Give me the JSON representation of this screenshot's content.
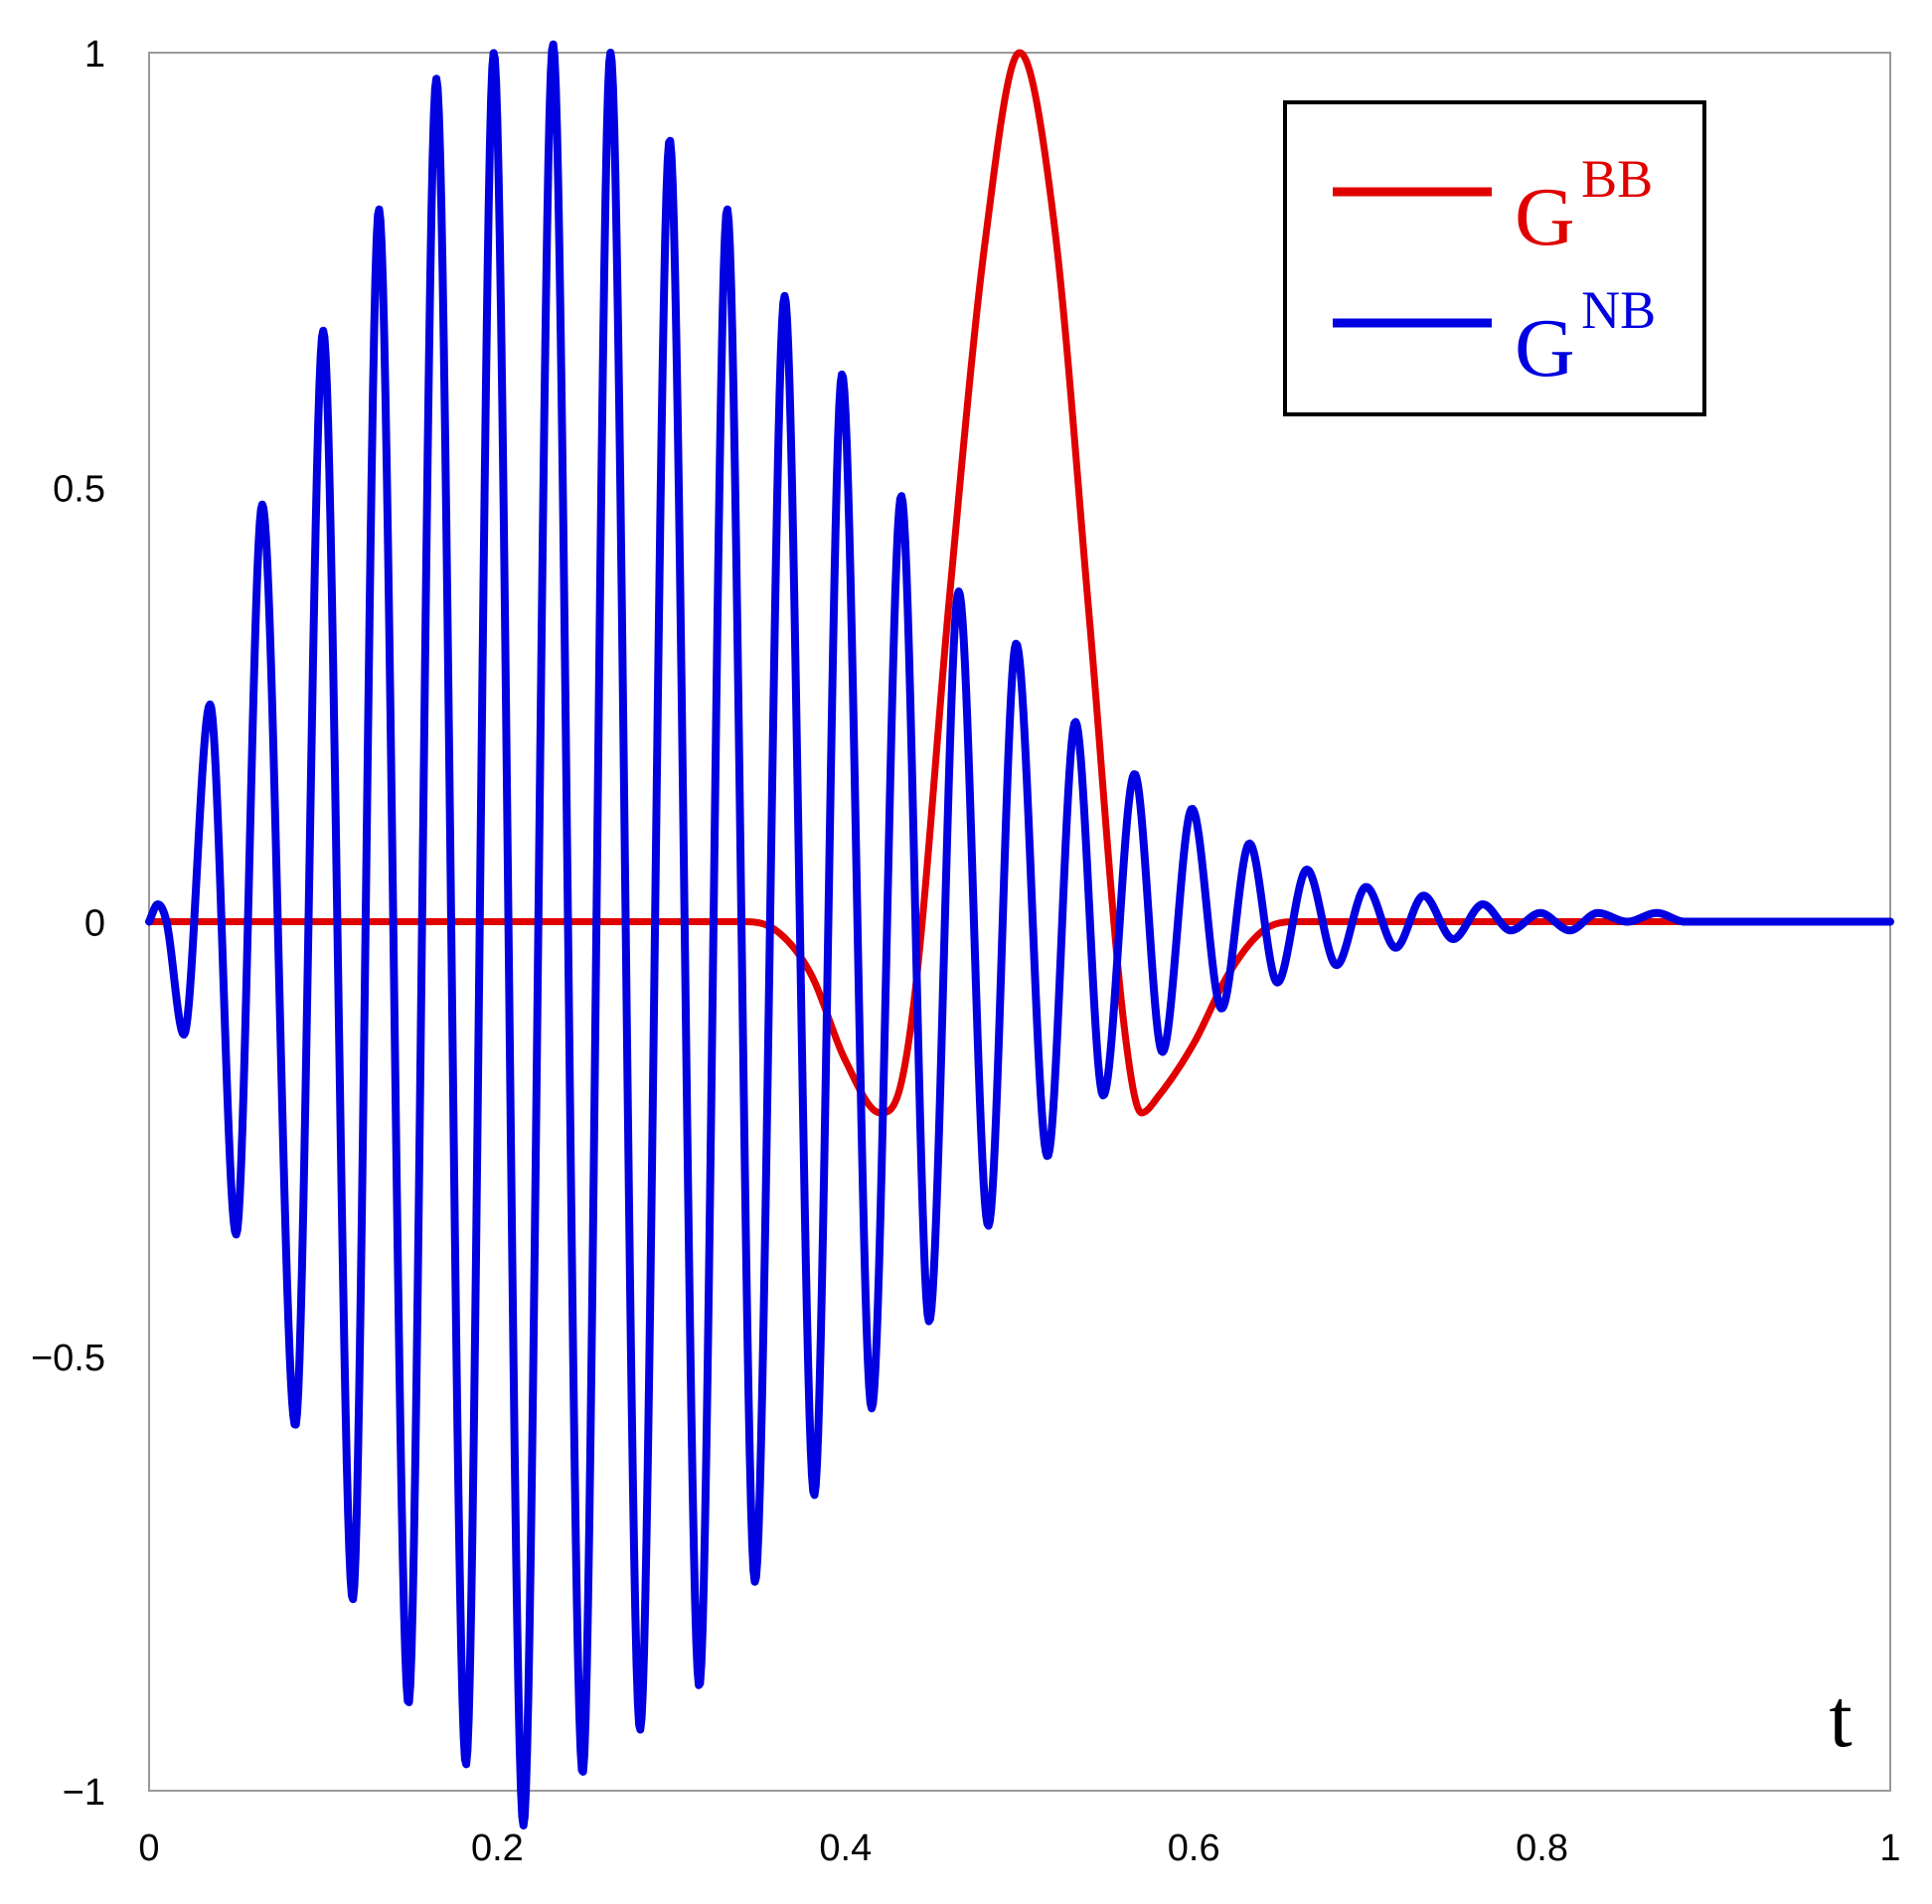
{
  "chart_data": {
    "type": "line",
    "title": "",
    "xlabel": "t",
    "ylabel": "",
    "xlim": [
      0,
      1
    ],
    "ylim": [
      -1,
      1
    ],
    "x_ticks": [
      "0",
      "0.2",
      "0.4",
      "0.6",
      "0.8",
      "1"
    ],
    "y_ticks": [
      "1",
      "0.5",
      "0",
      "−0.5",
      "−1"
    ],
    "x_tick_values": [
      0,
      0.2,
      0.4,
      0.6,
      0.8,
      1
    ],
    "y_tick_values": [
      1,
      0.5,
      0,
      -0.5,
      -1
    ],
    "grid": false,
    "legend_position": "top-right",
    "series": [
      {
        "legend_base": "G",
        "legend_sup": "BB",
        "color": "#e00000",
        "x": [
          0,
          0.05,
          0.1,
          0.15,
          0.2,
          0.25,
          0.3,
          0.34,
          0.36,
          0.38,
          0.4,
          0.42,
          0.43,
          0.44,
          0.46,
          0.48,
          0.5,
          0.52,
          0.54,
          0.56,
          0.57,
          0.58,
          0.6,
          0.62,
          0.64,
          0.66,
          0.7,
          0.8,
          0.9,
          1
        ],
        "y": [
          0,
          0,
          0,
          0,
          0,
          0,
          0,
          0,
          -0.01,
          -0.06,
          -0.16,
          -0.22,
          -0.2,
          -0.08,
          0.38,
          0.78,
          1,
          0.8,
          0.35,
          -0.12,
          -0.22,
          -0.2,
          -0.14,
          -0.06,
          -0.01,
          0,
          0,
          0,
          0,
          0
        ]
      },
      {
        "legend_base": "G",
        "legend_sup": "NB",
        "color": "#0000e0",
        "x": [
          0,
          0.005,
          0.01,
          0.02,
          0.035,
          0.05,
          0.065,
          0.084,
          0.1,
          0.117,
          0.132,
          0.149,
          0.165,
          0.182,
          0.198,
          0.215,
          0.232,
          0.249,
          0.265,
          0.282,
          0.299,
          0.316,
          0.332,
          0.348,
          0.365,
          0.382,
          0.398,
          0.415,
          0.432,
          0.448,
          0.465,
          0.482,
          0.498,
          0.516,
          0.532,
          0.548,
          0.566,
          0.582,
          0.599,
          0.616,
          0.632,
          0.648,
          0.665,
          0.682,
          0.699,
          0.716,
          0.732,
          0.749,
          0.766,
          0.782,
          0.799,
          0.816,
          0.832,
          0.849,
          0.866,
          0.882,
          0.899,
          0.916,
          0.95,
          1
        ],
        "y": [
          0,
          0.02,
          0,
          -0.13,
          0.25,
          -0.36,
          0.48,
          -0.58,
          0.68,
          -0.78,
          0.82,
          -0.9,
          0.97,
          -0.97,
          1,
          -1.04,
          1.01,
          -0.98,
          1,
          -0.93,
          0.9,
          -0.88,
          0.82,
          -0.76,
          0.72,
          -0.66,
          0.63,
          -0.56,
          0.49,
          -0.46,
          0.38,
          -0.35,
          0.32,
          -0.27,
          0.23,
          -0.2,
          0.17,
          -0.15,
          0.13,
          -0.1,
          0.09,
          -0.07,
          0.06,
          -0.05,
          0.04,
          -0.03,
          0.03,
          -0.02,
          0.02,
          -0.01,
          0.01,
          -0.01,
          0.01,
          0,
          0.01,
          0,
          0,
          0,
          0,
          0
        ]
      }
    ]
  }
}
